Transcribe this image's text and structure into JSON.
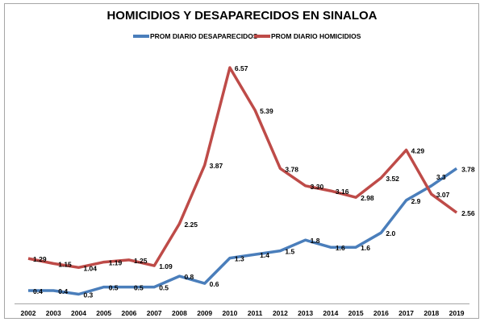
{
  "chart_data": {
    "type": "line",
    "title": "HOMICIDIOS Y DESAPARECIDOS EN SINALOA",
    "xlabel": "",
    "ylabel": "",
    "legend_position": "top-center",
    "grid": false,
    "ylim": [
      0,
      7
    ],
    "categories": [
      "2002",
      "2003",
      "2004",
      "2005",
      "2006",
      "2007",
      "2008",
      "2009",
      "2010",
      "2011",
      "2012",
      "2013",
      "2014",
      "2015",
      "2016",
      "2017",
      "2018",
      "2019"
    ],
    "series": [
      {
        "name": "PROM DIARIO DESAPARECIDOS",
        "color": "#4a7ebb",
        "values": [
          0.4,
          0.4,
          0.3,
          0.5,
          0.5,
          0.5,
          0.8,
          0.6,
          1.3,
          1.4,
          1.5,
          1.8,
          1.6,
          1.6,
          2.0,
          2.9,
          3.3,
          3.78
        ],
        "labels": [
          "0.4",
          "0.4",
          "0.3",
          "0.5",
          "0.5",
          "0.5",
          "0.8",
          "0.6",
          "1.3",
          "1.4",
          "1.5",
          "1.8",
          "1.6",
          "1.6",
          "2.0",
          "2.9",
          "3.3",
          "3.78"
        ]
      },
      {
        "name": "PROM DIARIO HOMICIDIOS",
        "color": "#be4b48",
        "values": [
          1.29,
          1.15,
          1.04,
          1.19,
          1.25,
          1.09,
          2.25,
          3.87,
          6.57,
          5.39,
          3.78,
          3.3,
          3.16,
          2.98,
          3.52,
          4.29,
          3.07,
          2.56
        ],
        "labels": [
          "1.29",
          "1.15",
          "1.04",
          "1.19",
          "1.25",
          "1.09",
          "2.25",
          "3.87",
          "6.57",
          "5.39",
          "3.78",
          "3.30",
          "3.16",
          "2.98",
          "3.52",
          "4.29",
          "3.07",
          "2.56"
        ]
      }
    ]
  }
}
